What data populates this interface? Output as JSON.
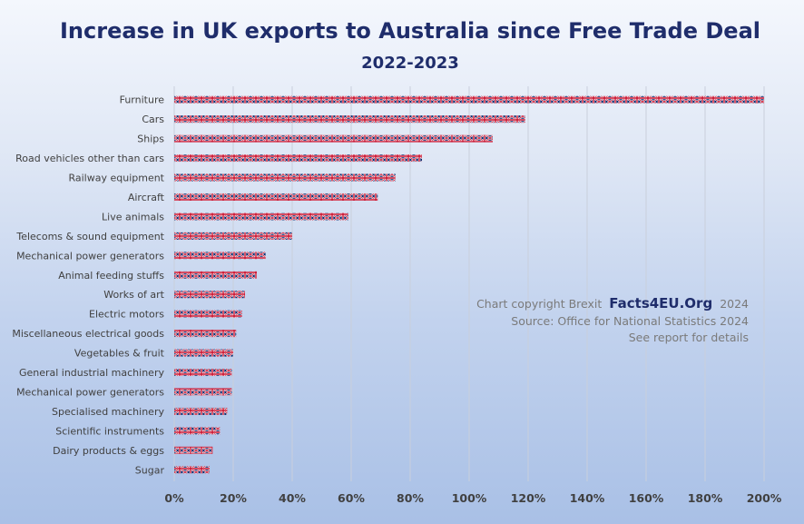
{
  "chart_data": {
    "type": "bar",
    "orientation": "horizontal",
    "title": "Increase in UK exports to Australia since Free Trade Deal",
    "subtitle": "2022-2023",
    "categories": [
      "Furniture",
      "Cars",
      "Ships",
      "Road vehicles other than cars",
      "Railway equipment",
      "Aircraft",
      "Live animals",
      "Telecoms & sound equipment",
      "Mechanical power generators",
      "Animal feeding stuffs",
      "Works of art",
      "Electric motors",
      "Miscellaneous electrical goods",
      "Vegetables & fruit",
      "General industrial machinery",
      "Mechanical power generators",
      "Specialised machinery",
      "Scientific instruments",
      "Dairy products & eggs",
      "Sugar"
    ],
    "values": [
      200,
      119,
      108,
      84,
      75,
      69,
      59,
      40,
      31,
      28,
      24,
      23,
      21,
      20,
      19.5,
      19.5,
      18,
      15.5,
      13,
      12
    ],
    "xlim": [
      0,
      200
    ],
    "x_ticks": [
      "0%",
      "20%",
      "40%",
      "60%",
      "80%",
      "100%",
      "120%",
      "140%",
      "160%",
      "180%",
      "200%"
    ],
    "grid": true,
    "legend": "none",
    "bar_pattern": "union-flag",
    "colors": {
      "bar_red": "#c8102e",
      "bar_blue": "#012169",
      "title": "#1f2d6b"
    }
  },
  "annotation": {
    "line1_prefix": "Chart copyright Brexit",
    "brand": "Facts4EU.Org",
    "line1_suffix": "2024",
    "line2": "Source: Office for National Statistics 2024",
    "line3": "See report for details"
  }
}
